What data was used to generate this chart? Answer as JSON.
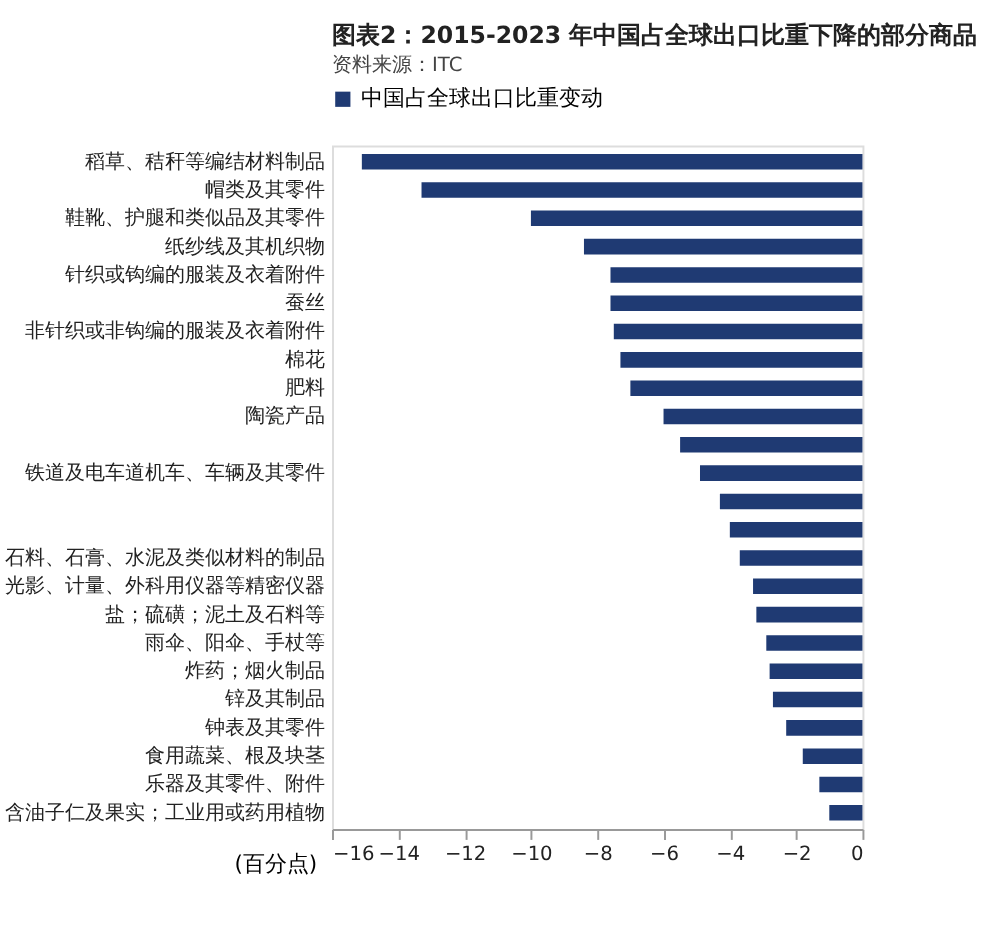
{
  "chart_data": {
    "type": "bar",
    "orientation": "horizontal",
    "title": "图表2：2015-2023 年中国占全球出口比重下降的部分商品",
    "categories": [
      "稻草、秸秆等编结材料制品",
      "帽类及其零件",
      "鞋靴、护腿和类似品及其零件",
      "纸纱线及其机织物",
      "针织或钩编的服装及衣着附件",
      "蚕丝",
      "非针织或非钩编的服装及衣着附件",
      "棉花",
      "肥料",
      "陶瓷产品",
      null,
      "铁道及电车道机车、车辆及其零件",
      null,
      null,
      "石料、石膏、水泥及类似材料的制品",
      "光影、计量、外科用仪器等精密仪器",
      "盐；硫磺；泥土及石料等",
      "雨伞、阳伞、手杖等",
      "炸药；烟火制品",
      "锌及其制品",
      "钟表及其零件",
      "食用蔬菜、根及块茎",
      "乐器及其零件、附件",
      "含油子仁及果实；工业用或药用植物"
    ],
    "series": [
      {
        "name": "中国占全球出口比重变动",
        "color": "#1f3a73",
        "values": [
          -15.1,
          -13.3,
          -10.0,
          -8.4,
          -7.6,
          -7.6,
          -7.5,
          -7.3,
          -7.0,
          -6.0,
          -5.5,
          -4.9,
          -4.3,
          -4.0,
          -3.7,
          -3.3,
          -3.2,
          -2.9,
          -2.8,
          -2.7,
          -2.3,
          -1.8,
          -1.3,
          -1.0
        ]
      }
    ],
    "xlim": [
      -16,
      0
    ],
    "xticks": [
      -16,
      -14,
      -12,
      -10,
      -8,
      -6,
      -4,
      -2,
      0
    ],
    "xlabel": "(百分点)",
    "legend": "top",
    "grid": false,
    "annotations": [
      "资料来源：ITC"
    ]
  }
}
